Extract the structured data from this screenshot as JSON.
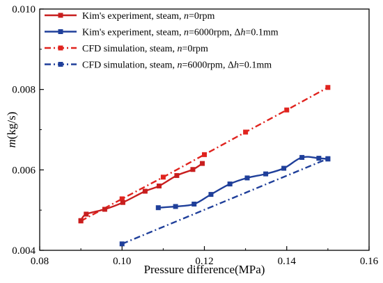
{
  "chart_data": {
    "type": "line",
    "title": "",
    "xlabel": "Pressure difference(MPa)",
    "ylabel_parts": [
      {
        "text": "m",
        "italic": true
      },
      {
        "text": "(kg/s)",
        "italic": false
      }
    ],
    "xlim": [
      0.08,
      0.16
    ],
    "ylim": [
      0.004,
      0.01
    ],
    "xticks": [
      0.08,
      0.1,
      0.12,
      0.14,
      0.16
    ],
    "xtick_labels": [
      "0.08",
      "0.10",
      "0.12",
      "0.14",
      "0.16"
    ],
    "yticks": [
      0.004,
      0.006,
      0.008,
      0.01
    ],
    "ytick_labels": [
      "0.004",
      "0.006",
      "0.008",
      "0.010"
    ],
    "grid": false,
    "legend_position": "top-left",
    "series": [
      {
        "name_parts": [
          {
            "text": "Kim's experiment, steam, ",
            "italic": false
          },
          {
            "text": "n",
            "italic": true
          },
          {
            "text": "=0rpm",
            "italic": false
          }
        ],
        "color": "#c81e1e",
        "line_style": "solid",
        "smooth": true,
        "x": [
          0.09,
          0.0913,
          0.0958,
          0.1002,
          0.1056,
          0.109,
          0.1133,
          0.1172,
          0.1195
        ],
        "y": [
          0.00474,
          0.0049,
          0.00502,
          0.00519,
          0.00547,
          0.0056,
          0.00586,
          0.00601,
          0.00616
        ]
      },
      {
        "name_parts": [
          {
            "text": "Kim's experiment, steam, ",
            "italic": false
          },
          {
            "text": "n",
            "italic": true
          },
          {
            "text": "=6000rpm, Δ",
            "italic": false
          },
          {
            "text": "h",
            "italic": true
          },
          {
            "text": "=0.1mm",
            "italic": false
          }
        ],
        "color": "#1f3f9a",
        "line_style": "solid",
        "smooth": true,
        "x": [
          0.1088,
          0.113,
          0.1175,
          0.1216,
          0.1262,
          0.1304,
          0.1349,
          0.1393,
          0.1437,
          0.1478,
          0.15
        ],
        "y": [
          0.00506,
          0.00509,
          0.00515,
          0.00539,
          0.00565,
          0.0058,
          0.0059,
          0.00604,
          0.00631,
          0.00629,
          0.00627
        ]
      },
      {
        "name_parts": [
          {
            "text": "CFD simulation, steam, ",
            "italic": false
          },
          {
            "text": "n",
            "italic": true
          },
          {
            "text": "=0rpm",
            "italic": false
          }
        ],
        "color": "#e0231e",
        "line_style": "dash-dot",
        "smooth": false,
        "x": [
          0.09,
          0.1,
          0.11,
          0.12,
          0.13,
          0.14,
          0.15
        ],
        "y": [
          0.00473,
          0.00528,
          0.00582,
          0.00638,
          0.00694,
          0.00749,
          0.00805
        ]
      },
      {
        "name_parts": [
          {
            "text": "CFD simulation, steam, ",
            "italic": false
          },
          {
            "text": "n",
            "italic": true
          },
          {
            "text": "=6000rpm, Δ",
            "italic": false
          },
          {
            "text": "h",
            "italic": true
          },
          {
            "text": "=0.1mm",
            "italic": false
          }
        ],
        "color": "#1f3f9a",
        "line_style": "dash-dot",
        "smooth": false,
        "x": [
          0.1,
          0.15
        ],
        "y": [
          0.00416,
          0.00628
        ]
      }
    ]
  }
}
